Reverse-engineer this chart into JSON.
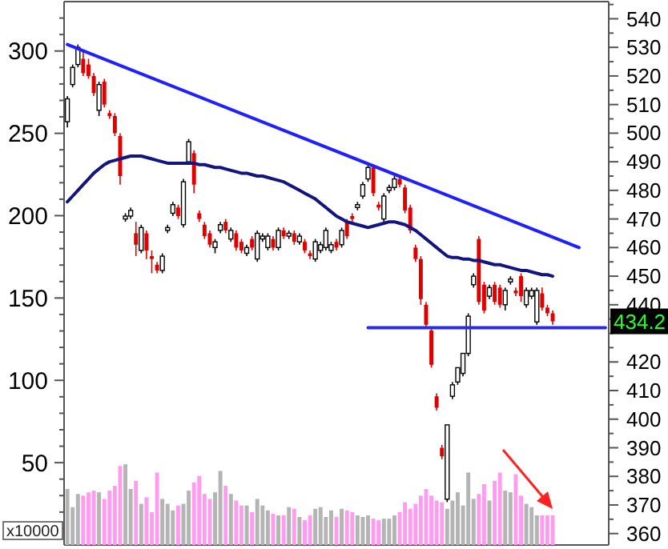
{
  "chart_data": {
    "type": "candlestick",
    "categories": [
      null,
      null,
      null,
      null,
      null,
      null,
      null,
      null,
      null,
      null,
      null,
      null,
      null,
      null,
      null,
      null,
      null,
      null,
      null,
      null,
      null,
      null,
      null,
      null,
      null,
      null,
      null,
      null,
      null,
      null,
      null,
      null,
      null,
      null,
      null,
      null,
      null,
      null,
      null,
      null,
      null,
      null,
      null,
      null,
      null,
      null,
      null,
      null,
      null,
      null,
      null,
      null,
      null,
      null,
      null,
      null,
      null,
      null,
      null,
      null,
      null,
      null,
      null,
      null,
      null,
      null,
      null,
      null,
      null,
      null,
      null,
      null,
      null,
      null,
      null,
      null,
      null,
      null,
      null,
      null,
      null,
      null,
      null,
      null,
      null,
      null,
      null,
      null,
      null,
      null,
      null,
      null,
      null,
      null,
      null,
      null,
      null,
      null,
      null,
      null,
      null,
      null,
      null
    ],
    "ylim": [
      0,
      330
    ],
    "yticks": [
      {
        "value": 10,
        "label": null
      },
      {
        "value": 20,
        "label": null
      },
      {
        "value": 30,
        "label": null
      },
      {
        "value": 40,
        "label": null
      },
      50,
      {
        "value": 60,
        "label": null
      },
      {
        "value": 70,
        "label": null
      },
      {
        "value": 80,
        "label": null
      },
      {
        "value": 90,
        "label": null
      },
      100,
      {
        "value": 110,
        "label": null
      },
      {
        "value": 120,
        "label": null
      },
      {
        "value": 130,
        "label": null
      },
      {
        "value": 140,
        "label": null
      },
      150,
      {
        "value": 160,
        "label": null
      },
      {
        "value": 170,
        "label": null
      },
      {
        "value": 180,
        "label": null
      },
      {
        "value": 190,
        "label": null
      },
      200,
      {
        "value": 210,
        "label": null
      },
      {
        "value": 220,
        "label": null
      },
      {
        "value": 230,
        "label": null
      },
      {
        "value": 240,
        "label": null
      },
      250,
      {
        "value": 260,
        "label": null
      },
      {
        "value": 270,
        "label": null
      },
      {
        "value": 280,
        "label": null
      },
      {
        "value": 290,
        "label": null
      },
      300,
      {
        "value": 310,
        "label": null
      },
      {
        "value": 320,
        "label": null
      }
    ],
    "y2lim": [
      356,
      546
    ],
    "y2ticks": [
      360,
      {
        "value": 365,
        "label": null
      },
      370,
      {
        "value": 375,
        "label": null
      },
      380,
      {
        "value": 385,
        "label": null
      },
      390,
      {
        "value": 395,
        "label": null
      },
      400,
      {
        "value": 405,
        "label": null
      },
      410,
      {
        "value": 415,
        "label": null
      },
      420,
      {
        "value": 425,
        "label": null
      },
      {
        "value": 430,
        "label": null
      },
      {
        "value": 435,
        "label": null
      },
      440,
      {
        "value": 445,
        "label": null
      },
      450,
      {
        "value": 455,
        "label": null
      },
      460,
      {
        "value": 465,
        "label": null
      },
      470,
      {
        "value": 475,
        "label": null
      },
      480,
      {
        "value": 485,
        "label": null
      },
      490,
      {
        "value": 495,
        "label": null
      },
      500,
      {
        "value": 505,
        "label": null
      },
      510,
      {
        "value": 515,
        "label": null
      },
      520,
      {
        "value": 525,
        "label": null
      },
      530,
      {
        "value": 535,
        "label": null
      },
      540,
      {
        "value": 545,
        "label": null
      }
    ],
    "grid": false,
    "marker": "none",
    "line_style": "solid",
    "annotations": [
      "434.2",
      "x10000"
    ],
    "series": [
      {
        "type": "bar",
        "axis": "y",
        "values": [
          34,
          23,
          31,
          30,
          32,
          33,
          32,
          28,
          33,
          36,
          48,
          49,
          34,
          39,
          25,
          29,
          20,
          44,
          28,
          25,
          21,
          24,
          25,
          33,
          38,
          42,
          31,
          28,
          32,
          45,
          36,
          31,
          27,
          24,
          24,
          20,
          28,
          24,
          21,
          19,
          18,
          18,
          23,
          22,
          17,
          15,
          18,
          22,
          23,
          17,
          21,
          17,
          22,
          21,
          20,
          18,
          17,
          18,
          16,
          15,
          16,
          16,
          18,
          20,
          26,
          22,
          25,
          30,
          34,
          30,
          27,
          26,
          22,
          27,
          32,
          24,
          44,
          28,
          31,
          37,
          27,
          39,
          44,
          33,
          32,
          43,
          30,
          25,
          23,
          18,
          18,
          18,
          18,
          null,
          null,
          null,
          null,
          null,
          null,
          null,
          null,
          null,
          null
        ],
        "colors": [
          "#b4b4b4",
          "#b4b4b4",
          "#b4b4b4",
          "#ff9cf0",
          "#ff9cf0",
          "#ff9cf0",
          "#b4b4b4",
          "#ff9cf0",
          "#ff9cf0",
          "#ff9cf0",
          "#ff9cf0",
          "#b4b4b4",
          "#b4b4b4",
          "#ff9cf0",
          "#b4b4b4",
          "#ff9cf0",
          "#ff9cf0",
          "#ff9cf0",
          "#b4b4b4",
          "#b4b4b4",
          "#b4b4b4",
          "#ff9cf0",
          "#b4b4b4",
          "#b4b4b4",
          "#ff9cf0",
          "#ff9cf0",
          "#ff9cf0",
          "#ff9cf0",
          "#b4b4b4",
          "#b4b4b4",
          "#ff9cf0",
          "#b4b4b4",
          "#ff9cf0",
          "#ff9cf0",
          "#b4b4b4",
          "#ff9cf0",
          "#b4b4b4",
          "#b4b4b4",
          "#b4b4b4",
          "#ff9cf0",
          "#b4b4b4",
          "#ff9cf0",
          "#b4b4b4",
          "#ff9cf0",
          "#b4b4b4",
          "#ff9cf0",
          "#ff9cf0",
          "#b4b4b4",
          "#b4b4b4",
          "#b4b4b4",
          "#b4b4b4",
          "#ff9cf0",
          "#b4b4b4",
          "#ff9cf0",
          "#ff9cf0",
          "#b4b4b4",
          "#b4b4b4",
          "#b4b4b4",
          "#ff9cf0",
          "#ff9cf0",
          "#b4b4b4",
          "#b4b4b4",
          "#b4b4b4",
          "#ff9cf0",
          "#ff9cf0",
          "#ff9cf0",
          "#ff9cf0",
          "#ff9cf0",
          "#ff9cf0",
          "#ff9cf0",
          "#ff9cf0",
          "#ff9cf0",
          "#b4b4b4",
          "#b4b4b4",
          "#b4b4b4",
          "#b4b4b4",
          "#b4b4b4",
          "#b4b4b4",
          "#ff9cf0",
          "#ff9cf0",
          "#b4b4b4",
          "#ff9cf0",
          "#ff9cf0",
          "#b4b4b4",
          "#b4b4b4",
          "#ff9cf0",
          "#ff9cf0",
          "#b4b4b4",
          "#b4b4b4",
          "#b4b4b4",
          "#ff9cf0",
          "#ff9cf0",
          "#ff9cf0",
          null,
          null,
          null,
          null,
          null,
          null,
          null,
          null,
          null,
          null
        ]
      },
      {
        "axis": "y2",
        "ohlc": [
          [
            504,
            513,
            502,
            512
          ],
          [
            517,
            524,
            516,
            523
          ],
          [
            524,
            531,
            523,
            530
          ],
          [
            526,
            529,
            520,
            521
          ],
          [
            524,
            526,
            519,
            520
          ],
          [
            520,
            521,
            513,
            514
          ],
          [
            508,
            518,
            506,
            517
          ],
          [
            518,
            519,
            509,
            510
          ],
          [
            507,
            508,
            505,
            506
          ],
          [
            506,
            507,
            499,
            500
          ],
          [
            499,
            500,
            482,
            485
          ],
          [
            470,
            472,
            469,
            471
          ],
          [
            471,
            474,
            470,
            473
          ],
          [
            465,
            469,
            457,
            461
          ],
          [
            459,
            468,
            458,
            467
          ],
          [
            465,
            466,
            456,
            459
          ],
          [
            457,
            459,
            451,
            456
          ],
          [
            454,
            455,
            451,
            452
          ],
          [
            452,
            458,
            451,
            457
          ],
          [
            466,
            468,
            465,
            467
          ],
          [
            472,
            476,
            471,
            475
          ],
          [
            474,
            475,
            470,
            471
          ],
          [
            468,
            484,
            467,
            483
          ],
          [
            490,
            498,
            489,
            497
          ],
          [
            493,
            494,
            479,
            482
          ],
          [
            472,
            473,
            469,
            470
          ],
          [
            468,
            469,
            463,
            464
          ],
          [
            465,
            466,
            460,
            461
          ],
          [
            460,
            463,
            458,
            462
          ],
          [
            466,
            469,
            465,
            468
          ],
          [
            469,
            470,
            465,
            466
          ],
          [
            463,
            467,
            462,
            466
          ],
          [
            465,
            466,
            459,
            460
          ],
          [
            462,
            463,
            458,
            459
          ],
          [
            458,
            461,
            457,
            460
          ],
          [
            463,
            464,
            459,
            460
          ],
          [
            456,
            466,
            455,
            465
          ],
          [
            463,
            465,
            462,
            464
          ],
          [
            460,
            465,
            459,
            464
          ],
          [
            463,
            464,
            459,
            460
          ],
          [
            460,
            467,
            459,
            466
          ],
          [
            466,
            467,
            463,
            464
          ],
          [
            464,
            466,
            463,
            465
          ],
          [
            465,
            466,
            461,
            462
          ],
          [
            462,
            465,
            461,
            464
          ],
          [
            462,
            463,
            458,
            459
          ],
          [
            458,
            459,
            456,
            457
          ],
          [
            456,
            463,
            455,
            462
          ],
          [
            459,
            462,
            458,
            461
          ],
          [
            460,
            467,
            459,
            466
          ],
          [
            459,
            462,
            458,
            461
          ],
          [
            462,
            463,
            459,
            460
          ],
          [
            461,
            467,
            460,
            466
          ],
          [
            469,
            470,
            463,
            464
          ],
          [
            471,
            472,
            469,
            470
          ],
          [
            474,
            476,
            473,
            475
          ],
          [
            478,
            483,
            477,
            482
          ],
          [
            484,
            489,
            483,
            488
          ],
          [
            488,
            489,
            478,
            479
          ],
          [
            475,
            476,
            473,
            474
          ],
          [
            470,
            479,
            469,
            478
          ],
          [
            480,
            482,
            479,
            481
          ],
          [
            481,
            485,
            480,
            484
          ],
          [
            484,
            485,
            481,
            482
          ],
          [
            481,
            482,
            472,
            473
          ],
          [
            474,
            475,
            465,
            466
          ],
          [
            460,
            461,
            455,
            456
          ],
          [
            456,
            457,
            440,
            442
          ],
          [
            440,
            441,
            432,
            433
          ],
          [
            431,
            432,
            418,
            419
          ],
          [
            408,
            409,
            403,
            404
          ],
          [
            390,
            391,
            386,
            387
          ],
          [
            372,
            398,
            371,
            398
          ],
          [
            408,
            413,
            407,
            412
          ],
          [
            413,
            418,
            412,
            418
          ],
          [
            416,
            423,
            415,
            423
          ],
          [
            423,
            437,
            422,
            436
          ],
          [
            447,
            451,
            446,
            450
          ],
          [
            463,
            464,
            440,
            441
          ],
          [
            447,
            448,
            437,
            438
          ],
          [
            443,
            447,
            442,
            446
          ],
          [
            447,
            448,
            440,
            441
          ],
          [
            446,
            447,
            439,
            440
          ],
          [
            440,
            446,
            438,
            445
          ],
          [
            448,
            450,
            447,
            449
          ],
          [
            445,
            446,
            443,
            444
          ],
          [
            450,
            451,
            441,
            443
          ],
          [
            440,
            446,
            439,
            445
          ],
          [
            443,
            446,
            442,
            445
          ],
          [
            434,
            446,
            433,
            445
          ],
          [
            444,
            446,
            438,
            439
          ],
          [
            439,
            440,
            436,
            437
          ],
          [
            437,
            438,
            433,
            434.2
          ],
          null,
          null,
          null,
          null,
          null,
          null,
          null,
          null,
          null,
          null
        ],
        "colors": [
          "#000000",
          "#000000",
          "#000000",
          "#e00000",
          "#e00000",
          "#e00000",
          "#000000",
          "#e00000",
          "#e00000",
          "#e00000",
          "#e00000",
          "#000000",
          "#000000",
          "#e00000",
          "#000000",
          "#e00000",
          "#e00000",
          "#e00000",
          "#000000",
          "#000000",
          "#000000",
          "#e00000",
          "#000000",
          "#000000",
          "#e00000",
          "#e00000",
          "#e00000",
          "#e00000",
          "#000000",
          "#000000",
          "#e00000",
          "#000000",
          "#e00000",
          "#e00000",
          "#000000",
          "#e00000",
          "#000000",
          "#000000",
          "#000000",
          "#e00000",
          "#000000",
          "#e00000",
          "#000000",
          "#e00000",
          "#000000",
          "#e00000",
          "#e00000",
          "#000000",
          "#000000",
          "#000000",
          "#000000",
          "#e00000",
          "#000000",
          "#e00000",
          "#e00000",
          "#000000",
          "#000000",
          "#000000",
          "#e00000",
          "#e00000",
          "#000000",
          "#000000",
          "#000000",
          "#e00000",
          "#e00000",
          "#e00000",
          "#e00000",
          "#e00000",
          "#e00000",
          "#e00000",
          "#e00000",
          "#e00000",
          "#000000",
          "#000000",
          "#000000",
          "#000000",
          "#000000",
          "#000000",
          "#e00000",
          "#e00000",
          "#000000",
          "#e00000",
          "#e00000",
          "#000000",
          "#000000",
          "#e00000",
          "#e00000",
          "#000000",
          "#000000",
          "#000000",
          "#e00000",
          "#e00000",
          "#e00000",
          null,
          null,
          null,
          null,
          null,
          null,
          null,
          null,
          null,
          null
        ]
      },
      {
        "type": "line",
        "axis": "y2",
        "color": "#141480",
        "values": [
          476,
          478,
          480,
          482,
          484,
          486,
          487.5,
          489,
          490,
          490.5,
          491,
          491.5,
          492,
          492,
          492,
          491.5,
          491,
          490.5,
          490,
          489.5,
          489.5,
          489.5,
          489.5,
          489.5,
          489.5,
          489,
          489,
          488.5,
          488,
          488,
          487.5,
          487,
          486.5,
          486,
          486,
          485.5,
          485,
          485,
          484.5,
          484,
          483.5,
          483,
          482,
          481,
          480,
          479,
          478,
          477,
          475.5,
          474,
          472.5,
          471,
          470,
          469,
          468.5,
          468,
          467.5,
          467,
          467.5,
          468,
          468.5,
          469,
          469,
          468.5,
          468,
          467,
          466,
          464.5,
          463,
          461.5,
          460,
          458.5,
          457,
          456.5,
          456.5,
          456,
          456,
          455.5,
          455.5,
          455,
          454.5,
          454,
          454,
          453.5,
          453,
          452.5,
          452,
          452,
          451.5,
          451,
          450.5,
          450.5,
          450,
          null,
          null,
          null,
          null,
          null,
          null,
          null,
          null,
          null,
          null
        ]
      },
      {
        "type": "line",
        "axis": "y2",
        "color": "#1f1fff",
        "values": [
          531,
          null,
          null,
          null,
          null,
          null,
          null,
          null,
          null,
          null,
          null,
          null,
          null,
          null,
          null,
          null,
          null,
          null,
          null,
          null,
          null,
          null,
          null,
          null,
          null,
          null,
          null,
          null,
          null,
          null,
          null,
          null,
          null,
          null,
          null,
          null,
          null,
          null,
          null,
          null,
          null,
          null,
          null,
          null,
          null,
          null,
          null,
          null,
          null,
          null,
          null,
          null,
          null,
          null,
          null,
          null,
          null,
          null,
          null,
          null,
          null,
          null,
          null,
          null,
          null,
          null,
          null,
          null,
          null,
          null,
          null,
          null,
          null,
          null,
          null,
          null,
          null,
          null,
          null,
          null,
          null,
          null,
          null,
          null,
          null,
          null,
          null,
          null,
          null,
          null,
          null,
          null,
          null,
          null,
          null,
          null,
          null,
          460,
          null,
          null,
          null,
          null,
          null
        ]
      },
      {
        "type": "line",
        "axis": "y2",
        "color": "#2a2ae0",
        "values": [
          null,
          null,
          null,
          null,
          null,
          null,
          null,
          null,
          null,
          null,
          null,
          null,
          null,
          null,
          null,
          null,
          null,
          null,
          null,
          null,
          null,
          null,
          null,
          null,
          null,
          null,
          null,
          null,
          null,
          null,
          null,
          null,
          null,
          null,
          null,
          null,
          null,
          null,
          null,
          null,
          null,
          null,
          null,
          null,
          null,
          null,
          null,
          null,
          null,
          null,
          null,
          null,
          null,
          null,
          null,
          null,
          null,
          432,
          null,
          null,
          null,
          null,
          null,
          null,
          null,
          null,
          null,
          null,
          null,
          null,
          null,
          null,
          null,
          null,
          null,
          null,
          null,
          null,
          null,
          null,
          null,
          null,
          null,
          null,
          null,
          null,
          null,
          null,
          null,
          null,
          null,
          null,
          null,
          null,
          null,
          null,
          null,
          null,
          null,
          null,
          null,
          null,
          432
        ]
      }
    ]
  }
}
